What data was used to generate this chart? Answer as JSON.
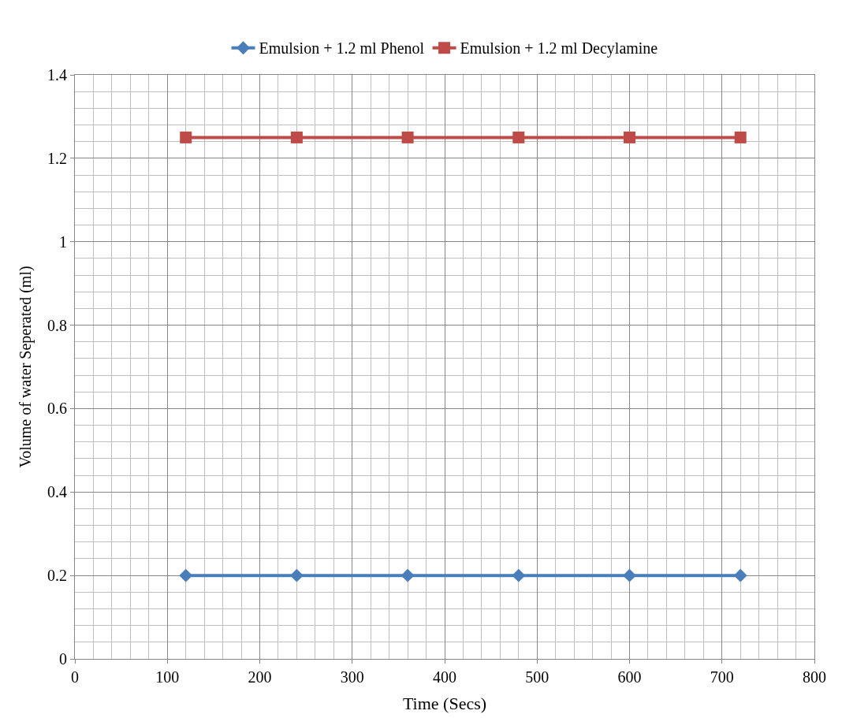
{
  "chart_data": {
    "type": "line",
    "xlabel": "Time (Secs)",
    "ylabel": "Volume of water Seperated (ml)",
    "x": [
      120,
      240,
      360,
      480,
      600,
      720
    ],
    "series": [
      {
        "name": "Emulsion + 1.2 ml Phenol",
        "color": "#4a7ebb",
        "marker": "diamond",
        "values": [
          0.2,
          0.2,
          0.2,
          0.2,
          0.2,
          0.2
        ]
      },
      {
        "name": "Emulsion + 1.2 ml Decylamine",
        "color": "#be4b48",
        "marker": "square",
        "values": [
          1.25,
          1.25,
          1.25,
          1.25,
          1.25,
          1.25
        ]
      }
    ],
    "xlim": [
      0,
      800
    ],
    "xticks": [
      0,
      100,
      200,
      300,
      400,
      500,
      600,
      700,
      800
    ],
    "ylim": [
      0,
      1.4
    ],
    "yticks": [
      0,
      0.2,
      0.4,
      0.6,
      0.8,
      1,
      1.2,
      1.4
    ],
    "grid": true,
    "legend": "top",
    "line_style": "solid"
  }
}
